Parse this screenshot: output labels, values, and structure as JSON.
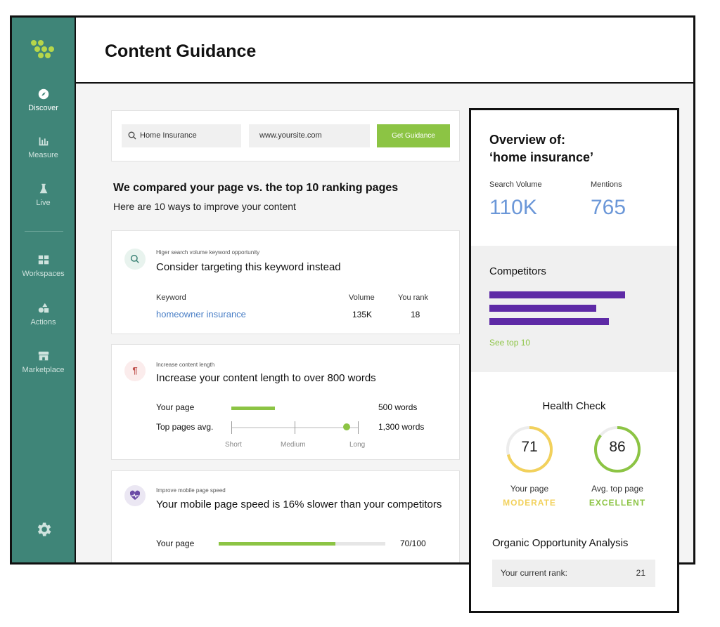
{
  "header": {
    "title": "Content Guidance"
  },
  "sidebar": {
    "items": [
      {
        "label": "Discover",
        "icon": "compass-icon",
        "active": true
      },
      {
        "label": "Measure",
        "icon": "bar-chart-icon",
        "active": false
      },
      {
        "label": "Live",
        "icon": "flask-icon",
        "active": false
      },
      {
        "label": "Workspaces",
        "icon": "grid-icon",
        "active": false
      },
      {
        "label": "Actions",
        "icon": "shapes-icon",
        "active": false
      },
      {
        "label": "Marketplace",
        "icon": "store-icon",
        "active": false
      }
    ],
    "settings_icon": "gear-icon"
  },
  "search": {
    "keyword_value": "Home Insurance",
    "site_value": "www.yoursite.com",
    "button_label": "Get Guidance"
  },
  "comparison": {
    "heading": "We compared your page vs. the top 10 ranking pages",
    "subheading": "Here are 10 ways to improve your content"
  },
  "tips": {
    "keyword": {
      "kicker": "Higer search volume keyword opportunity",
      "title": "Consider targeting this keyword instead",
      "col_keyword": "Keyword",
      "col_volume": "Volume",
      "col_rank": "You rank",
      "keyword": "homeowner insurance",
      "volume": "135K",
      "rank": "18"
    },
    "length": {
      "kicker": "Increase content length",
      "title": "Increase your content length to over 800 words",
      "your_page_label": "Your page",
      "your_page_value": "500 words",
      "top_pages_label": "Top pages avg.",
      "top_pages_value": "1,300 words",
      "scale": [
        "Short",
        "Medium",
        "Long"
      ]
    },
    "speed": {
      "kicker": "Improve mobile page speed",
      "title": "Your mobile page speed is 16% slower than your competitors",
      "your_page_label": "Your page",
      "score": "70/100",
      "score_fraction": 0.7
    }
  },
  "overview": {
    "title_line1": "Overview of:",
    "title_line2": "‘home insurance’",
    "search_volume_label": "Search Volume",
    "search_volume": "110K",
    "mentions_label": "Mentions",
    "mentions": "765",
    "competitors_title": "Competitors",
    "competitor_levels": [
      1.0,
      0.79,
      0.88
    ],
    "see_top_link": "See top 10",
    "health_title": "Health Check",
    "your_page": {
      "score": "71",
      "fraction": 0.71,
      "label": "Your page",
      "status": "MODERATE",
      "color": "#f2d15c"
    },
    "top_page": {
      "score": "86",
      "fraction": 0.86,
      "label": "Avg. top page",
      "status": "EXCELLENT",
      "color": "#8cc444"
    },
    "opportunity_title": "Organic Opportunity Analysis",
    "rank_label": "Your current rank:",
    "rank_value": "21"
  },
  "colors": {
    "sidebar": "#3f8578",
    "accent_green": "#8cc444",
    "link_blue": "#4a7fc6",
    "stat_blue": "#6b97d8",
    "competitor_purple": "#5e2aa6"
  }
}
